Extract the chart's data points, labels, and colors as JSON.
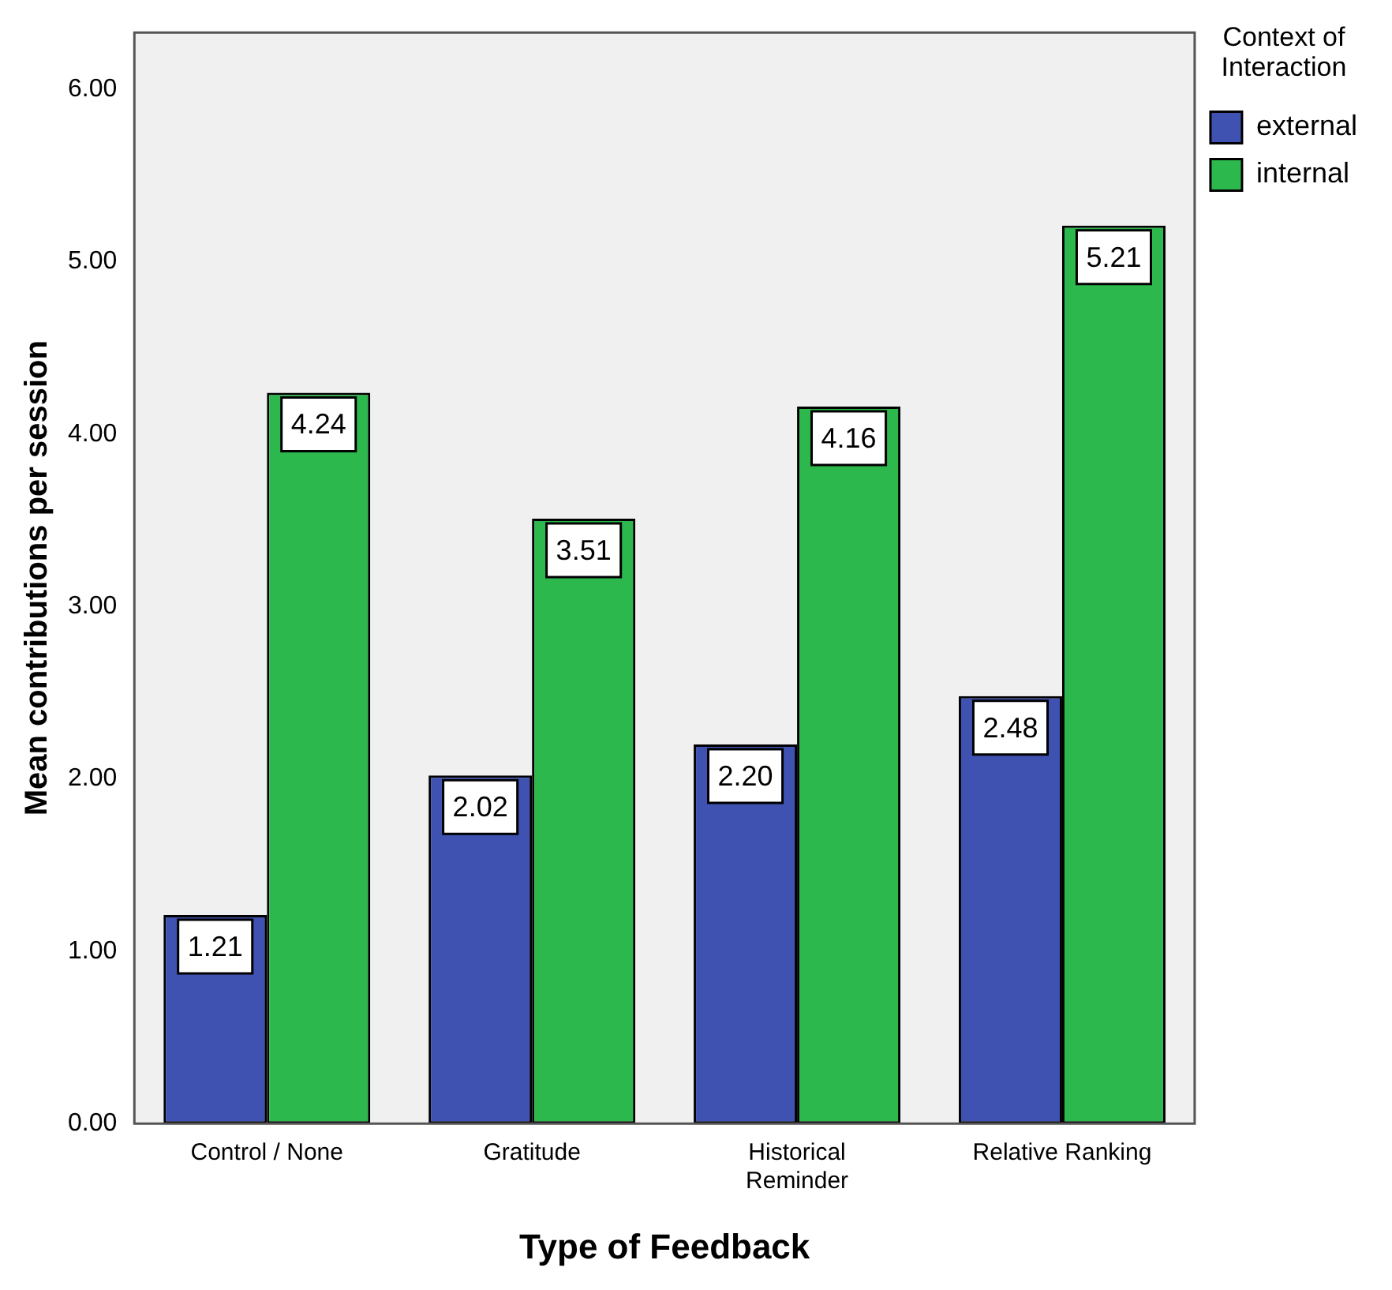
{
  "chart_data": {
    "type": "bar",
    "xlabel": "Type of Feedback",
    "ylabel": "Mean contributions per session",
    "legend_title": "Context of Interaction",
    "legend": "top right",
    "grid": false,
    "categories": [
      "Control / None",
      "Gratitude",
      "Historical Reminder",
      "Relative Ranking"
    ],
    "series": [
      {
        "name": "external",
        "color": "#3f51b1",
        "values": [
          1.21,
          2.02,
          2.2,
          2.48
        ],
        "value_labels": [
          "1.21",
          "2.02",
          "2.20",
          "2.48"
        ]
      },
      {
        "name": "internal",
        "color": "#2db84d",
        "values": [
          4.24,
          3.51,
          4.16,
          5.21
        ],
        "value_labels": [
          "4.24",
          "3.51",
          "4.16",
          "5.21"
        ]
      }
    ],
    "ylim": [
      0,
      6.33
    ],
    "yticks": [
      {
        "value": 0,
        "label": "0.00"
      },
      {
        "value": 1,
        "label": "1.00"
      },
      {
        "value": 2,
        "label": "2.00"
      },
      {
        "value": 3,
        "label": "3.00"
      },
      {
        "value": 4,
        "label": "4.00"
      },
      {
        "value": 5,
        "label": "5.00"
      },
      {
        "value": 6,
        "label": "6.00"
      }
    ]
  }
}
